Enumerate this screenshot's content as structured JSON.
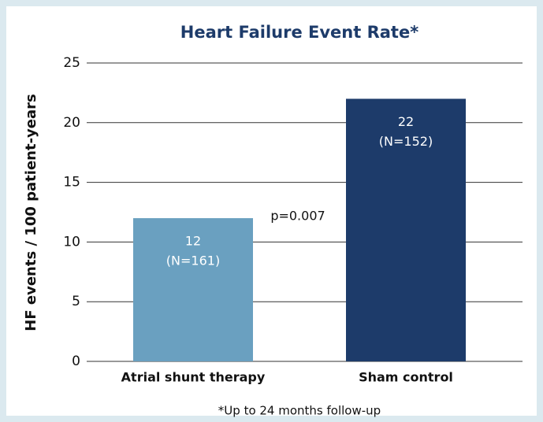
{
  "chart_data": {
    "type": "bar",
    "title": "Heart Failure Event Rate*",
    "y_label": "HF events / 100 patient-years",
    "categories": [
      "Atrial shunt therapy",
      "Sham control"
    ],
    "values": [
      12,
      22
    ],
    "sample_sizes": [
      "(N=161)",
      "(N=152)"
    ],
    "colors": [
      "#6aa0c0",
      "#1d3b6a"
    ],
    "annotation": "p=0.007",
    "footnote": "*Up to 24 months follow-up",
    "ylim": [
      0,
      25
    ],
    "yticks": [
      0,
      5,
      10,
      15,
      20,
      25
    ],
    "grid": true
  }
}
